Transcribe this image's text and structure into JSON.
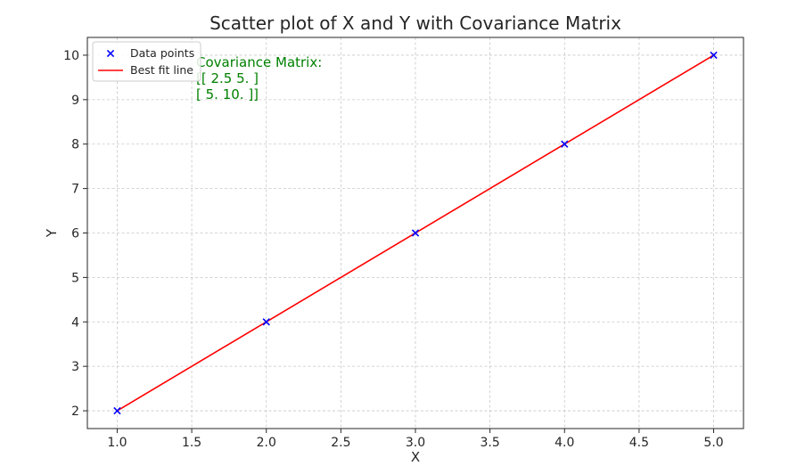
{
  "chart_data": {
    "type": "scatter",
    "title": "Scatter plot of X and Y with Covariance Matrix",
    "xlabel": "X",
    "ylabel": "Y",
    "xlim": [
      0.8,
      5.2
    ],
    "ylim": [
      1.6,
      10.4
    ],
    "xticks": [
      "1.0",
      "1.5",
      "2.0",
      "2.5",
      "3.0",
      "3.5",
      "4.0",
      "4.5",
      "5.0"
    ],
    "yticks": [
      "2",
      "3",
      "4",
      "5",
      "6",
      "7",
      "8",
      "9",
      "10"
    ],
    "grid": true,
    "legend_position": "upper-left",
    "series": [
      {
        "name": "Data points",
        "type": "scatter",
        "marker": "x",
        "color": "#0000ff",
        "x": [
          1,
          2,
          3,
          4,
          5
        ],
        "y": [
          2,
          4,
          6,
          8,
          10
        ]
      },
      {
        "name": "Best fit line",
        "type": "line",
        "color": "#ff0000",
        "x": [
          1,
          5
        ],
        "y": [
          2,
          10
        ]
      }
    ],
    "annotation": {
      "lines": [
        "Covariance Matrix:",
        "[[ 2.5  5. ]",
        " [ 5.  10. ]]"
      ],
      "color": "#008000"
    }
  }
}
